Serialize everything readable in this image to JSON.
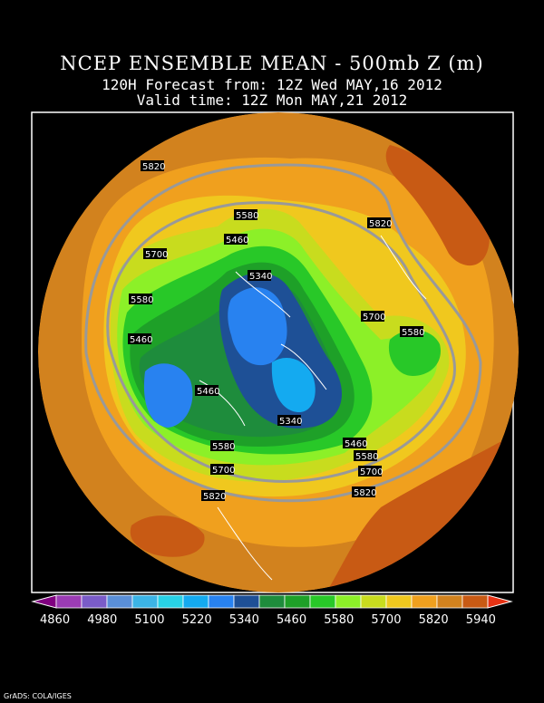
{
  "title": {
    "line1": "NCEP ENSEMBLE MEAN - 500mb Z (m)",
    "line2": "120H Forecast from: 12Z Wed MAY,16 2012",
    "line3": "Valid time: 12Z Mon MAY,21 2012"
  },
  "colorbar": {
    "colors": [
      "#800080",
      "#9b3cb4",
      "#7a5cc8",
      "#5a8fd8",
      "#3cb4e6",
      "#28d2e6",
      "#14aaf0",
      "#2882f0",
      "#1e5096",
      "#1e8c3c",
      "#1ea028",
      "#28c828",
      "#8cf028",
      "#c8dc1e",
      "#f0c81e",
      "#f0a01e",
      "#d2821e",
      "#c85a14",
      "#e63214"
    ],
    "labels": [
      "4860",
      "4980",
      "5100",
      "5220",
      "5340",
      "5460",
      "5580",
      "5700",
      "5820",
      "5940"
    ]
  },
  "contour_labels": [
    "5820",
    "5580",
    "5460",
    "5700",
    "5580",
    "5340",
    "5460",
    "5460",
    "5340",
    "5580",
    "5700",
    "5820",
    "5820",
    "5700",
    "5580",
    "5460",
    "5580",
    "5700",
    "5820"
  ],
  "credit": "GrADS: COLA/IGES"
}
